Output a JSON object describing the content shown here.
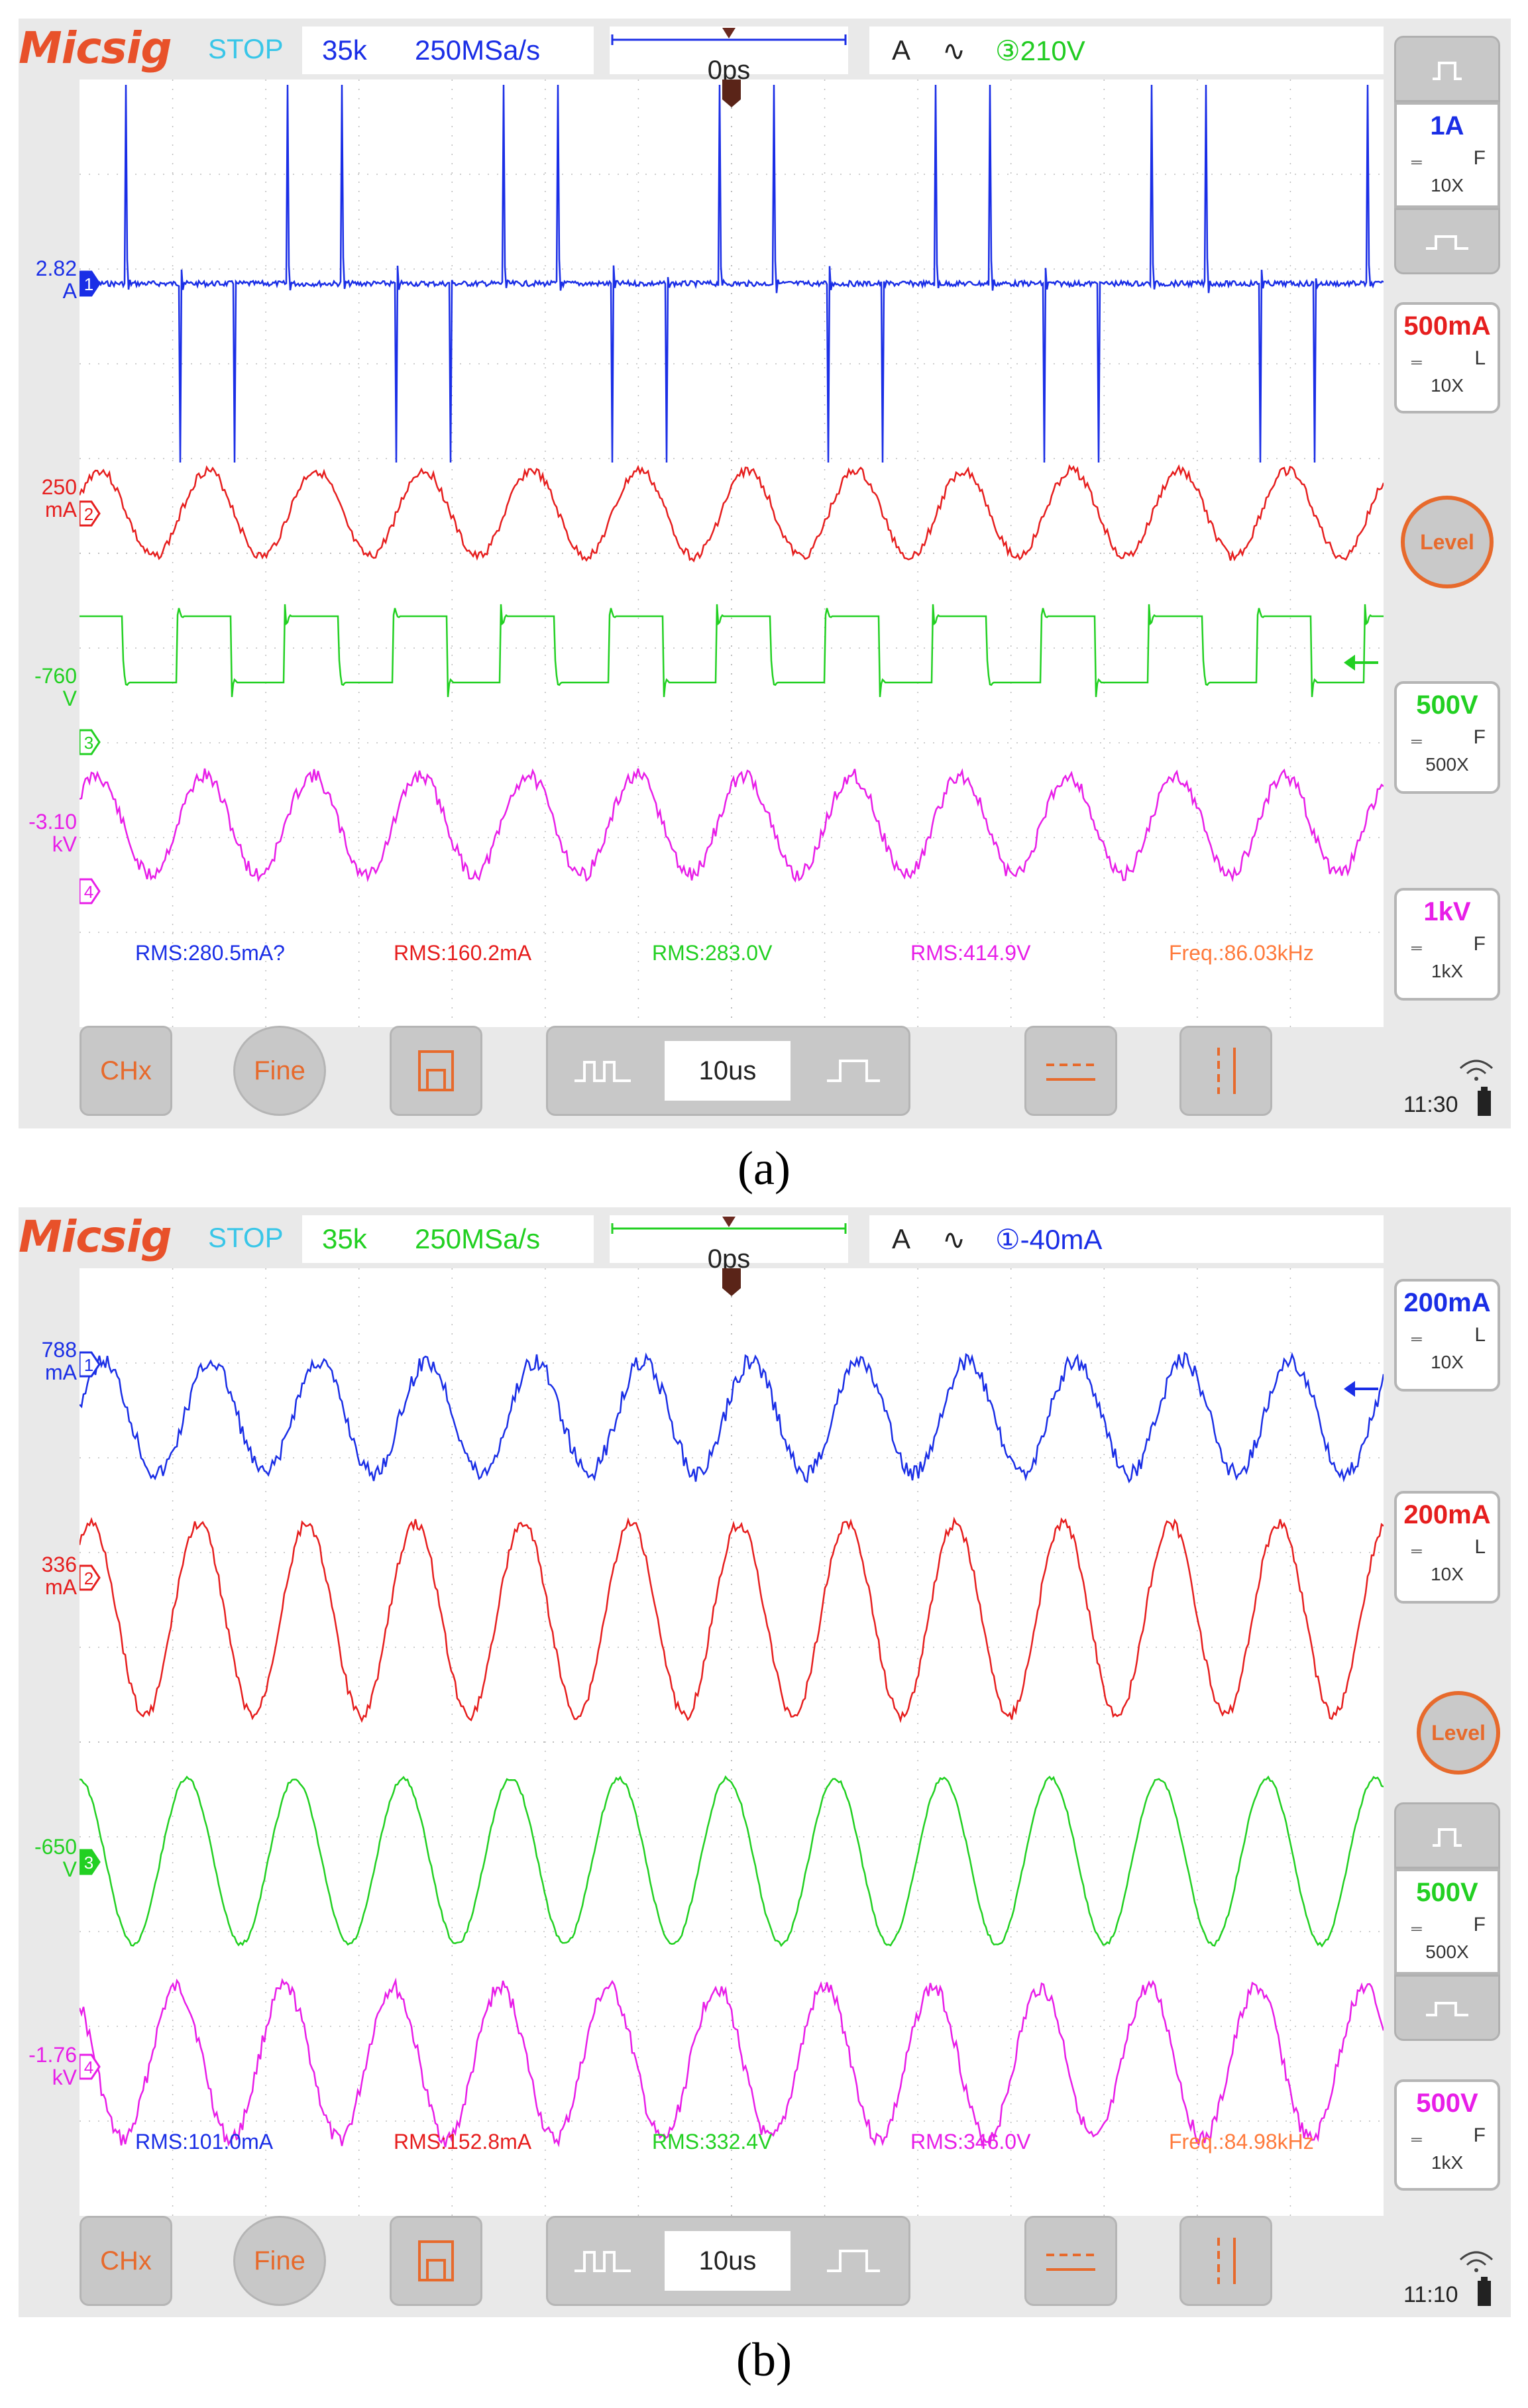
{
  "panels": [
    {
      "id": "a",
      "caption": "(a)",
      "logo": "Micsig",
      "status": "STOP",
      "memory_depth": "35k",
      "sample_rate": "250MSa/s",
      "time_offset": "0ps",
      "trigger_mode": "A",
      "trigger_slope": "∿",
      "trigger_source_level": "③210V",
      "trigger_text_color": "#22cc22",
      "timebase": "10us",
      "clock": "11:30",
      "buttons": {
        "chx": "CHx",
        "fine": "Fine",
        "level": "Level"
      },
      "channels": [
        {
          "num": "1",
          "offset_value": "2.82",
          "offset_unit": "A",
          "scale": "1A",
          "coupling": "F",
          "probe": "10X",
          "color": "#1a2ee6",
          "rms": "RMS:280.5mA?"
        },
        {
          "num": "2",
          "offset_value": "250",
          "offset_unit": "mA",
          "scale": "500mA",
          "coupling": "L",
          "probe": "10X",
          "color": "#e61e1e",
          "rms": "RMS:160.2mA"
        },
        {
          "num": "3",
          "offset_value": "-760",
          "offset_unit": "V",
          "scale": "500V",
          "coupling": "F",
          "probe": "500X",
          "color": "#22d022",
          "rms": "RMS:283.0V"
        },
        {
          "num": "4",
          "offset_value": "-3.10",
          "offset_unit": "kV",
          "scale": "1kV",
          "coupling": "F",
          "probe": "1kX",
          "color": "#e81ee8",
          "rms": "RMS:414.9V"
        }
      ],
      "frequency": "Freq.:86.03kHz"
    },
    {
      "id": "b",
      "caption": "(b)",
      "logo": "Micsig",
      "status": "STOP",
      "memory_depth": "35k",
      "sample_rate": "250MSa/s",
      "time_offset": "0ps",
      "trigger_mode": "A",
      "trigger_slope": "∿",
      "trigger_source_level": "①-40mA",
      "trigger_text_color": "#1a2ee6",
      "timebase": "10us",
      "clock": "11:10",
      "buttons": {
        "chx": "CHx",
        "fine": "Fine",
        "level": "Level"
      },
      "channels": [
        {
          "num": "1",
          "offset_value": "788",
          "offset_unit": "mA",
          "scale": "200mA",
          "coupling": "L",
          "probe": "10X",
          "color": "#1a2ee6",
          "rms": "RMS:101.0mA"
        },
        {
          "num": "2",
          "offset_value": "336",
          "offset_unit": "mA",
          "scale": "200mA",
          "coupling": "L",
          "probe": "10X",
          "color": "#e61e1e",
          "rms": "RMS:152.8mA"
        },
        {
          "num": "3",
          "offset_value": "-650",
          "offset_unit": "V",
          "scale": "500V",
          "coupling": "F",
          "probe": "500X",
          "color": "#22d022",
          "rms": "RMS:332.4V"
        },
        {
          "num": "4",
          "offset_value": "-1.76",
          "offset_unit": "kV",
          "scale": "500V",
          "coupling": "F",
          "probe": "1kX",
          "color": "#e81ee8",
          "rms": "RMS:346.0V"
        }
      ],
      "frequency": "Freq.:84.98kHz"
    }
  ]
}
